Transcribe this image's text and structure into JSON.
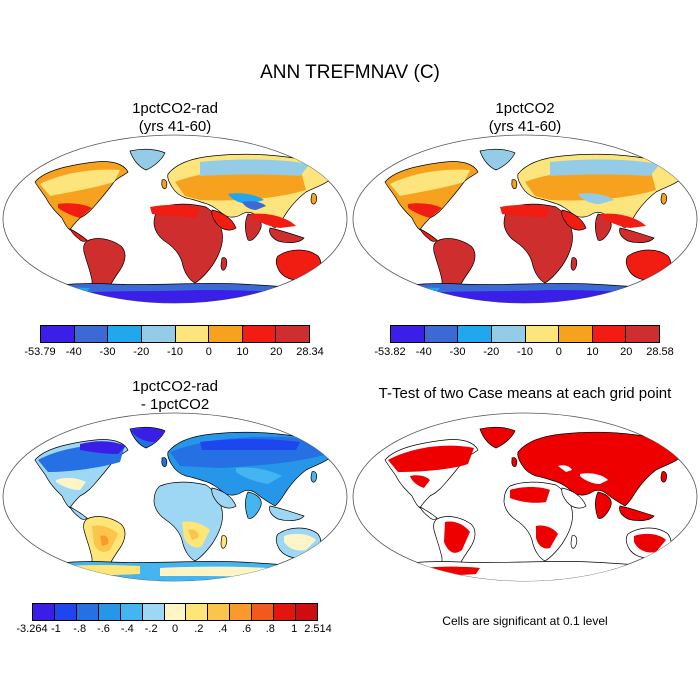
{
  "title": "ANN TREFMNAV (C)",
  "panels": [
    {
      "line1": "1pctCO2-rad",
      "line2": "(yrs 41-60)"
    },
    {
      "line1": "1pctCO2",
      "line2": "(yrs 41-60)"
    },
    {
      "line1": "1pctCO2-rad",
      "line2": "- 1pctCO2"
    },
    {
      "line1": "T-Test of two Case means at each grid point",
      "line2": ""
    }
  ],
  "colorbars": [
    {
      "colors": [
        "#3b1ee8",
        "#3b6ad6",
        "#22a7ee",
        "#94cbe6",
        "#fbe57c",
        "#f7a21f",
        "#f11c12",
        "#cf2e2e"
      ],
      "labels": [
        "-53.79",
        "-40",
        "-30",
        "-20",
        "-10",
        "0",
        "10",
        "20",
        "28.34"
      ]
    },
    {
      "colors": [
        "#3b1ee8",
        "#3b6ad6",
        "#22a7ee",
        "#94cbe6",
        "#fbe57c",
        "#f7a21f",
        "#f11c12",
        "#cf2e2e"
      ],
      "labels": [
        "-53.82",
        "-40",
        "-30",
        "-20",
        "-10",
        "0",
        "10",
        "20",
        "28.58"
      ]
    },
    {
      "colors": [
        "#3a1de6",
        "#1e46ef",
        "#2571e3",
        "#2596e8",
        "#44b5f0",
        "#9dd7f4",
        "#fdf5c6",
        "#fde577",
        "#fbc54c",
        "#f99a2b",
        "#f15a1c",
        "#e3160e",
        "#cc0e12"
      ],
      "labels": [
        "-3.264",
        "-1",
        "-.8",
        "-.6",
        "-.4",
        "-.2",
        "0",
        ".2",
        ".4",
        ".6",
        ".8",
        "1",
        "2.514"
      ]
    }
  ],
  "significance_note": "Cells are significant at 0.1 level",
  "colors": {
    "land_outline": "#000000",
    "significant": "#ee0000"
  }
}
